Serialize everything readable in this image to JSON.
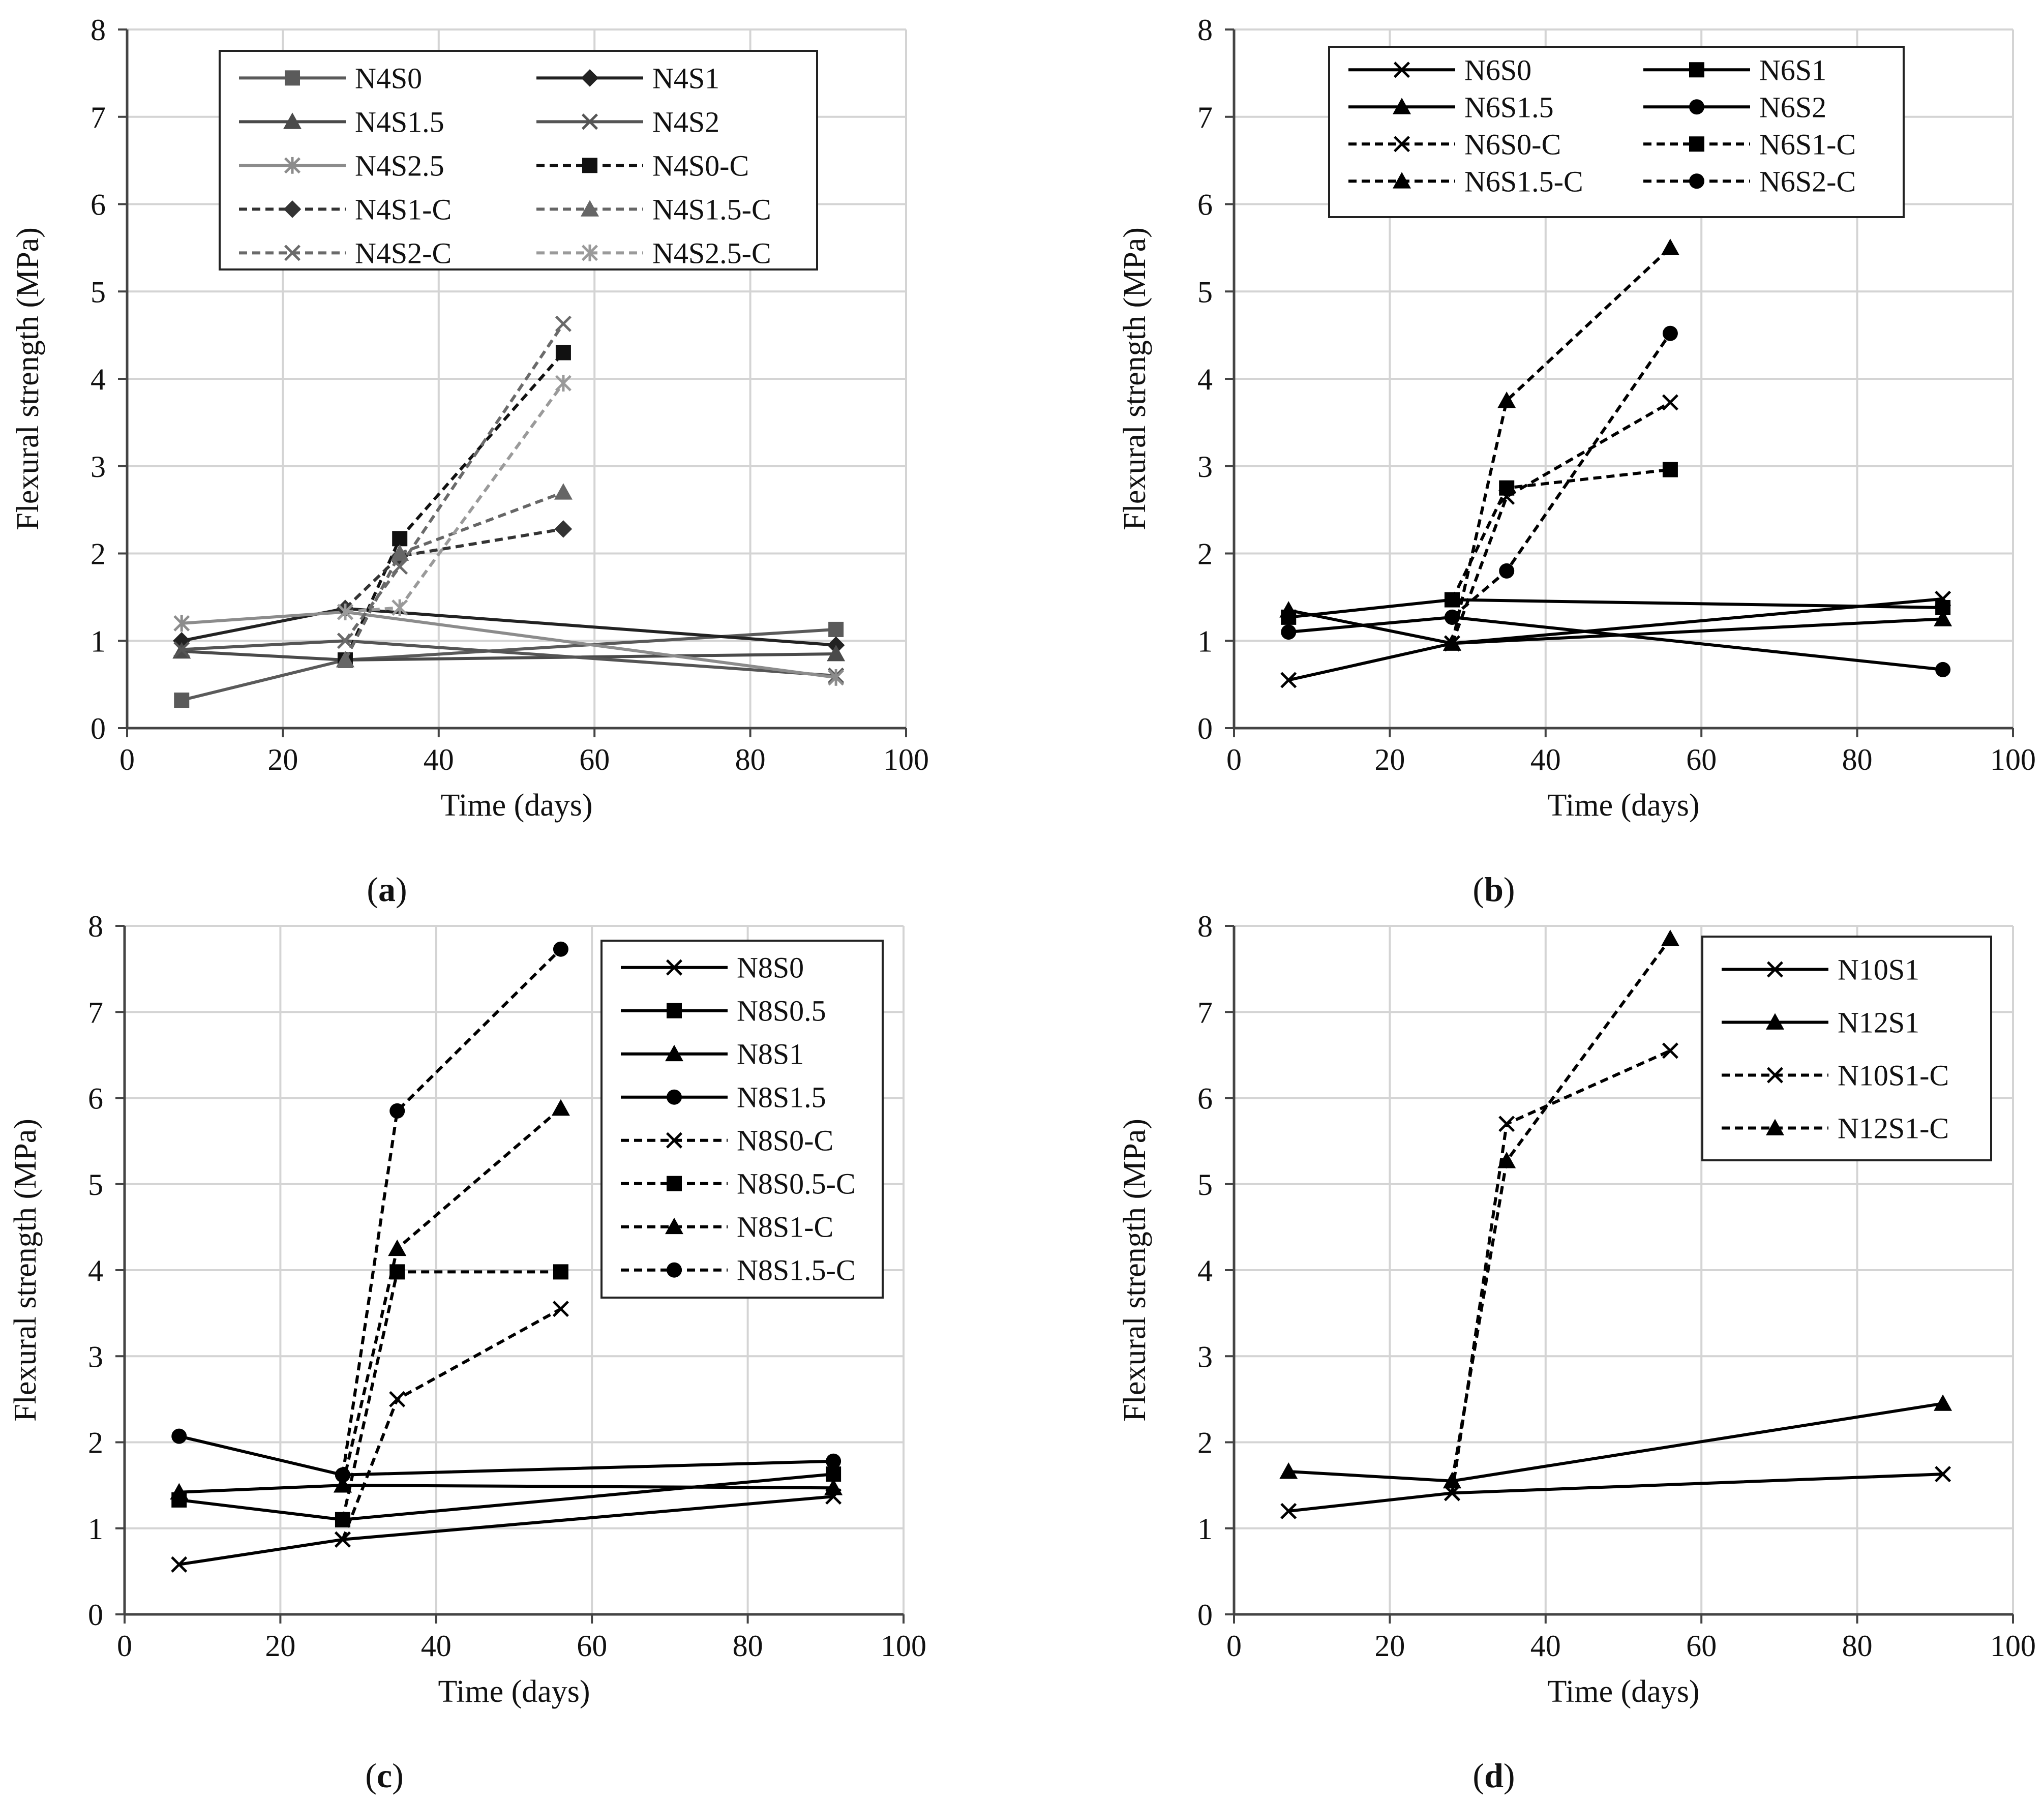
{
  "figure": {
    "panels_order": [
      "a",
      "b",
      "c",
      "d"
    ]
  },
  "chart_data": [
    {
      "id": "a",
      "type": "line",
      "caption_letter": "a",
      "caption_open": "(",
      "caption_close": ")",
      "title": "",
      "xlabel": "Time (days)",
      "ylabel": "Flexural strength (MPa)",
      "xlim": [
        0,
        100
      ],
      "ylim": [
        0,
        8
      ],
      "xticks": [
        0,
        20,
        40,
        60,
        80,
        100
      ],
      "yticks": [
        0,
        1,
        2,
        3,
        4,
        5,
        6,
        7,
        8
      ],
      "grid": true,
      "legend_position": "top-center",
      "legend_columns": 2,
      "series": [
        {
          "name": "N4S0",
          "marker": "square",
          "dash": "solid",
          "color": "#5a5a5a",
          "points": [
            [
              7,
              0.32
            ],
            [
              28,
              0.78
            ],
            [
              91,
              1.13
            ]
          ]
        },
        {
          "name": "N4S1",
          "marker": "diamond",
          "dash": "solid",
          "color": "#222222",
          "points": [
            [
              7,
              1.0
            ],
            [
              28,
              1.37
            ],
            [
              91,
              0.95
            ]
          ]
        },
        {
          "name": "N4S1.5",
          "marker": "triangle",
          "dash": "solid",
          "color": "#4a4a4a",
          "points": [
            [
              7,
              0.88
            ],
            [
              28,
              0.78
            ],
            [
              91,
              0.85
            ]
          ]
        },
        {
          "name": "N4S2",
          "marker": "x",
          "dash": "solid",
          "color": "#555555",
          "points": [
            [
              7,
              0.9
            ],
            [
              28,
              1.0
            ],
            [
              91,
              0.6
            ]
          ]
        },
        {
          "name": "N4S2.5",
          "marker": "star",
          "dash": "solid",
          "color": "#8c8c8c",
          "points": [
            [
              7,
              1.2
            ],
            [
              28,
              1.33
            ],
            [
              91,
              0.58
            ]
          ]
        },
        {
          "name": "N4S0-C",
          "marker": "square",
          "dash": "dashed",
          "color": "#111111",
          "points": [
            [
              28,
              0.78
            ],
            [
              35,
              2.17
            ],
            [
              56,
              4.3
            ]
          ]
        },
        {
          "name": "N4S1-C",
          "marker": "diamond",
          "dash": "dashed",
          "color": "#333333",
          "points": [
            [
              28,
              1.37
            ],
            [
              35,
              1.97
            ],
            [
              56,
              2.28
            ]
          ]
        },
        {
          "name": "N4S1.5-C",
          "marker": "triangle",
          "dash": "dashed",
          "color": "#666666",
          "points": [
            [
              28,
              0.78
            ],
            [
              35,
              2.0
            ],
            [
              56,
              2.7
            ]
          ]
        },
        {
          "name": "N4S2-C",
          "marker": "x",
          "dash": "dashed",
          "color": "#6a6a6a",
          "points": [
            [
              28,
              1.0
            ],
            [
              35,
              1.85
            ],
            [
              56,
              4.63
            ]
          ]
        },
        {
          "name": "N4S2.5-C",
          "marker": "star",
          "dash": "dashed",
          "color": "#9a9a9a",
          "points": [
            [
              28,
              1.33
            ],
            [
              35,
              1.38
            ],
            [
              56,
              3.95
            ]
          ]
        }
      ]
    },
    {
      "id": "b",
      "type": "line",
      "caption_letter": "b",
      "caption_open": "(",
      "caption_close": ")",
      "title": "",
      "xlabel": "Time (days)",
      "ylabel": "Flexural strength (MPa)",
      "xlim": [
        0,
        100
      ],
      "ylim": [
        0,
        8
      ],
      "xticks": [
        0,
        20,
        40,
        60,
        80,
        100
      ],
      "yticks": [
        0,
        1,
        2,
        3,
        4,
        5,
        6,
        7,
        8
      ],
      "grid": true,
      "legend_position": "top-center",
      "legend_columns": 2,
      "series": [
        {
          "name": "N6S0",
          "marker": "x",
          "dash": "solid",
          "color": "#000000",
          "points": [
            [
              7,
              0.55
            ],
            [
              28,
              0.97
            ],
            [
              91,
              1.48
            ]
          ]
        },
        {
          "name": "N6S1",
          "marker": "square",
          "dash": "solid",
          "color": "#000000",
          "points": [
            [
              7,
              1.27
            ],
            [
              28,
              1.47
            ],
            [
              91,
              1.38
            ]
          ]
        },
        {
          "name": "N6S1.5",
          "marker": "triangle",
          "dash": "solid",
          "color": "#000000",
          "points": [
            [
              7,
              1.35
            ],
            [
              28,
              0.97
            ],
            [
              91,
              1.25
            ]
          ]
        },
        {
          "name": "N6S2",
          "marker": "circle",
          "dash": "solid",
          "color": "#000000",
          "points": [
            [
              7,
              1.1
            ],
            [
              28,
              1.27
            ],
            [
              91,
              0.67
            ]
          ]
        },
        {
          "name": "N6S0-C",
          "marker": "x",
          "dash": "dashed",
          "color": "#000000",
          "points": [
            [
              28,
              0.97
            ],
            [
              35,
              2.65
            ],
            [
              56,
              3.73
            ]
          ]
        },
        {
          "name": "N6S1-C",
          "marker": "square",
          "dash": "dashed",
          "color": "#000000",
          "points": [
            [
              28,
              1.47
            ],
            [
              35,
              2.75
            ],
            [
              56,
              2.96
            ]
          ]
        },
        {
          "name": "N6S1.5-C",
          "marker": "triangle",
          "dash": "dashed",
          "color": "#000000",
          "points": [
            [
              28,
              0.97
            ],
            [
              35,
              3.75
            ],
            [
              56,
              5.5
            ]
          ]
        },
        {
          "name": "N6S2-C",
          "marker": "circle",
          "dash": "dashed",
          "color": "#000000",
          "points": [
            [
              28,
              1.27
            ],
            [
              35,
              1.8
            ],
            [
              56,
              4.52
            ]
          ]
        }
      ]
    },
    {
      "id": "c",
      "type": "line",
      "caption_letter": "c",
      "caption_open": "(",
      "caption_close": ")",
      "title": "",
      "xlabel": "Time (days)",
      "ylabel": "Flexural strength (MPa)",
      "xlim": [
        0,
        100
      ],
      "ylim": [
        0,
        8
      ],
      "xticks": [
        0,
        20,
        40,
        60,
        80,
        100
      ],
      "yticks": [
        0,
        1,
        2,
        3,
        4,
        5,
        6,
        7,
        8
      ],
      "grid": true,
      "legend_position": "top-right",
      "legend_columns": 1,
      "series": [
        {
          "name": "N8S0",
          "marker": "x",
          "dash": "solid",
          "color": "#000000",
          "points": [
            [
              7,
              0.58
            ],
            [
              28,
              0.87
            ],
            [
              91,
              1.37
            ]
          ]
        },
        {
          "name": "N8S0.5",
          "marker": "square",
          "dash": "solid",
          "color": "#000000",
          "points": [
            [
              7,
              1.33
            ],
            [
              28,
              1.1
            ],
            [
              91,
              1.63
            ]
          ]
        },
        {
          "name": "N8S1",
          "marker": "triangle",
          "dash": "solid",
          "color": "#000000",
          "points": [
            [
              7,
              1.42
            ],
            [
              28,
              1.5
            ],
            [
              91,
              1.47
            ]
          ]
        },
        {
          "name": "N8S1.5",
          "marker": "circle",
          "dash": "solid",
          "color": "#000000",
          "points": [
            [
              7,
              2.07
            ],
            [
              28,
              1.62
            ],
            [
              91,
              1.78
            ]
          ]
        },
        {
          "name": "N8S0-C",
          "marker": "x",
          "dash": "dashed",
          "color": "#000000",
          "points": [
            [
              28,
              0.87
            ],
            [
              35,
              2.5
            ],
            [
              56,
              3.55
            ]
          ]
        },
        {
          "name": "N8S0.5-C",
          "marker": "square",
          "dash": "dashed",
          "color": "#000000",
          "points": [
            [
              28,
              1.1
            ],
            [
              35,
              3.98
            ],
            [
              56,
              3.98
            ]
          ]
        },
        {
          "name": "N8S1-C",
          "marker": "triangle",
          "dash": "dashed",
          "color": "#000000",
          "points": [
            [
              28,
              1.5
            ],
            [
              35,
              4.25
            ],
            [
              56,
              5.88
            ]
          ]
        },
        {
          "name": "N8S1.5-C",
          "marker": "circle",
          "dash": "dashed",
          "color": "#000000",
          "points": [
            [
              28,
              1.62
            ],
            [
              35,
              5.85
            ],
            [
              56,
              7.73
            ]
          ]
        }
      ]
    },
    {
      "id": "d",
      "type": "line",
      "caption_letter": "d",
      "caption_open": "(",
      "caption_close": ")",
      "title": "",
      "xlabel": "Time (days)",
      "ylabel": "Flexural strength (MPa)",
      "xlim": [
        0,
        100
      ],
      "ylim": [
        0,
        8
      ],
      "xticks": [
        0,
        20,
        40,
        60,
        80,
        100
      ],
      "yticks": [
        0,
        1,
        2,
        3,
        4,
        5,
        6,
        7,
        8
      ],
      "grid": true,
      "legend_position": "top-right",
      "legend_columns": 1,
      "series": [
        {
          "name": "N10S1",
          "marker": "x",
          "dash": "solid",
          "color": "#000000",
          "points": [
            [
              7,
              1.2
            ],
            [
              28,
              1.41
            ],
            [
              91,
              1.63
            ]
          ]
        },
        {
          "name": "N12S1",
          "marker": "triangle",
          "dash": "solid",
          "color": "#000000",
          "points": [
            [
              7,
              1.66
            ],
            [
              28,
              1.55
            ],
            [
              91,
              2.45
            ]
          ]
        },
        {
          "name": "N10S1-C",
          "marker": "x",
          "dash": "dashed",
          "color": "#000000",
          "points": [
            [
              28,
              1.41
            ],
            [
              35,
              5.7
            ],
            [
              56,
              6.55
            ]
          ]
        },
        {
          "name": "N12S1-C",
          "marker": "triangle",
          "dash": "dashed",
          "color": "#000000",
          "points": [
            [
              28,
              1.55
            ],
            [
              35,
              5.27
            ],
            [
              56,
              7.85
            ]
          ]
        }
      ]
    }
  ]
}
